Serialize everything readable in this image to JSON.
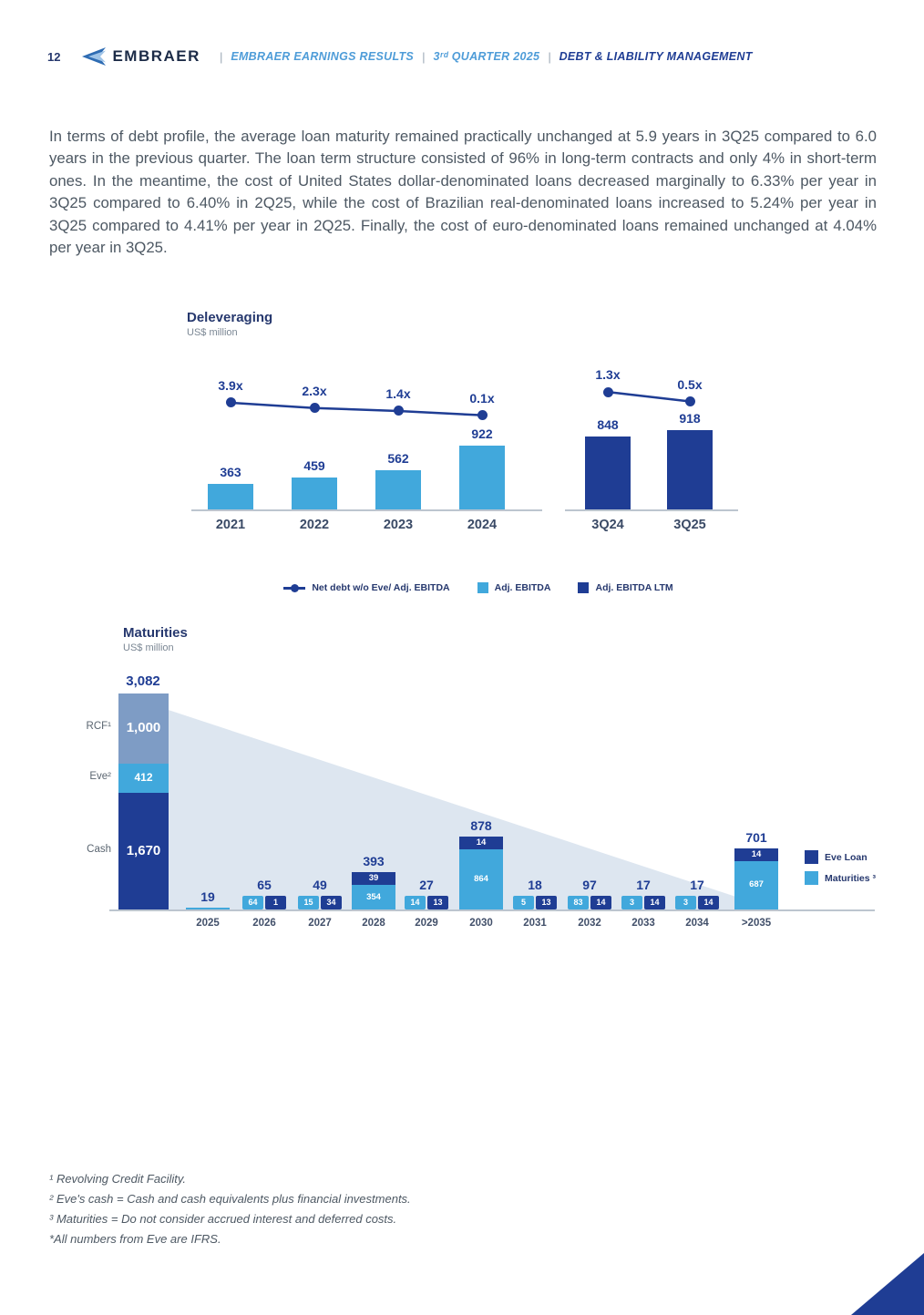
{
  "header": {
    "page_number": "12",
    "brand": "EMBRAER",
    "crumbs": [
      {
        "label": "EMBRAER EARNINGS RESULTS"
      },
      {
        "label": "3ʳᵈ QUARTER 2025"
      },
      {
        "label": "DEBT & LIABILITY MANAGEMENT"
      }
    ]
  },
  "paragraph": "In terms of debt profile, the average loan maturity remained practically unchanged at 5.9 years in 3Q25 compared to 6.0 years in the previous quarter. The loan term structure consisted of 96% in long-term contracts and only 4% in short-term ones. In the meantime, the cost of United States dollar-denominated loans decreased marginally to 6.33% per year in 3Q25 compared to 6.40% in 2Q25, while the cost of Brazilian real-denominated loans increased to 5.24% per year in 3Q25 compared to 4.41% per year in 2Q25. Finally, the cost of euro-denominated loans remained unchanged at 4.04% per year in 3Q25.",
  "colors": {
    "navy": "#1f3d94",
    "light_blue": "#41a8dc",
    "rcf_blue": "#7e9cc5",
    "triangle_bg": "#dde6f0"
  },
  "chart_data": [
    {
      "type": "bar",
      "title": "Deleveraging",
      "subtitle": "US$ million",
      "groups": [
        {
          "categories": [
            "2021",
            "2022",
            "2023",
            "2024"
          ],
          "bar_values": [
            363,
            459,
            562,
            922
          ],
          "bar_series": "Adj. EBITDA",
          "bar_color_key": "light_blue",
          "line_labels": [
            "3.9x",
            "2.3x",
            "1.4x",
            "0.1x"
          ],
          "line_values": [
            3.9,
            2.3,
            1.4,
            0.1
          ]
        },
        {
          "categories": [
            "3Q24",
            "3Q25"
          ],
          "bar_values": [
            848,
            918
          ],
          "bar_series": "Adj. EBITDA LTM",
          "bar_color_key": "navy",
          "line_labels": [
            "1.3x",
            "0.5x"
          ],
          "line_values": [
            1.3,
            0.5
          ]
        }
      ],
      "legend": [
        {
          "marker": "line-dot",
          "label": "Net debt w/o Eve/ Adj. EBITDA"
        },
        {
          "marker": "square",
          "color_key": "light_blue",
          "label": "Adj. EBITDA"
        },
        {
          "marker": "square",
          "color_key": "navy",
          "label": "Adj. EBITDA LTM"
        }
      ]
    },
    {
      "type": "stacked-bar",
      "title": "Maturities",
      "subtitle": "US$ million",
      "total_bar": {
        "total_label": "3,082",
        "total_value": 3082,
        "segments": [
          {
            "name": "RCF¹",
            "value": 1000,
            "display": "1,000",
            "color_key": "rcf_blue"
          },
          {
            "name": "Eve²",
            "value": 412,
            "display": "412",
            "color_key": "light_blue"
          },
          {
            "name": "Cash",
            "value": 1670,
            "display": "1,670",
            "color_key": "navy"
          }
        ]
      },
      "categories": [
        "2025",
        "2026",
        "2027",
        "2028",
        "2029",
        "2030",
        "2031",
        "2032",
        "2033",
        "2034",
        ">2035"
      ],
      "totals": [
        19,
        65,
        49,
        393,
        27,
        878,
        18,
        97,
        17,
        17,
        701
      ],
      "series": [
        {
          "name": "Maturities ³",
          "color_key": "light_blue",
          "values": [
            19,
            64,
            15,
            354,
            14,
            864,
            5,
            83,
            3,
            3,
            687
          ]
        },
        {
          "name": "Eve Loan",
          "color_key": "navy",
          "values": [
            null,
            1,
            34,
            39,
            13,
            14,
            13,
            14,
            14,
            14,
            14
          ]
        }
      ],
      "legend": [
        {
          "color_key": "navy",
          "label": "Eve Loan"
        },
        {
          "color_key": "light_blue",
          "label": "Maturities ³"
        }
      ]
    }
  ],
  "footnotes": [
    "¹ Revolving Credit Facility.",
    "² Eve's cash = Cash and cash equivalents plus financial investments.",
    "³ Maturities = Do not consider accrued interest and deferred costs.",
    "*All numbers from Eve are IFRS."
  ]
}
